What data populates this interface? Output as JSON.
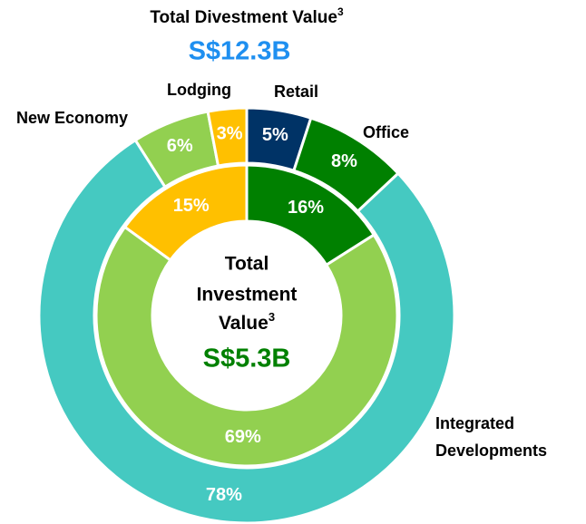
{
  "chart_data": [
    {
      "type": "donut",
      "title": "Total Divestment Value",
      "title_sup": "3",
      "total": "S$12.3B",
      "categories": [
        "Retail",
        "Office",
        "Integrated Developments",
        "New Economy",
        "Lodging"
      ],
      "values": [
        5,
        8,
        78,
        6,
        3
      ],
      "value_labels": [
        "5%",
        "8%",
        "78%",
        "6%",
        "3%"
      ],
      "colors": [
        "#003366",
        "#008000",
        "#45c9c1",
        "#92d050",
        "#ffc000"
      ]
    },
    {
      "type": "donut",
      "title_lines": [
        "Total",
        "Investment",
        "Value"
      ],
      "title_sup": "3",
      "total": "S$5.3B",
      "values": [
        16,
        69,
        15
      ],
      "value_labels": [
        "16%",
        "69%",
        "15%"
      ],
      "colors": [
        "#008000",
        "#92d050",
        "#ffc000"
      ]
    }
  ]
}
